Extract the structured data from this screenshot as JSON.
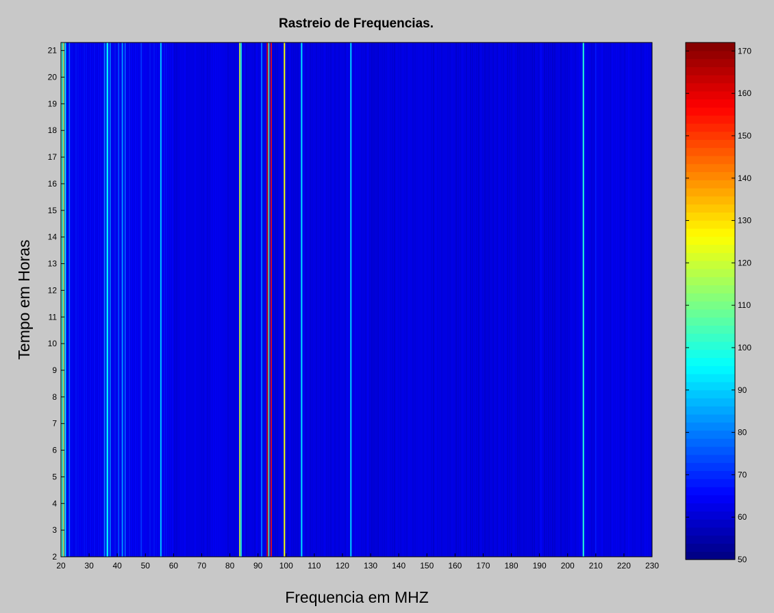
{
  "figure": {
    "background": "#c8c8c8"
  },
  "chart_data": {
    "type": "heatmap",
    "title": "Rastreio de Frequencias.",
    "xlabel": "Frequencia em MHZ",
    "ylabel": "Tempo em Horas",
    "xlim": [
      20,
      230
    ],
    "ylim": [
      2,
      21.3
    ],
    "x_ticks": [
      20,
      30,
      40,
      50,
      60,
      70,
      80,
      90,
      100,
      110,
      120,
      130,
      140,
      150,
      160,
      170,
      180,
      190,
      200,
      210,
      220,
      230
    ],
    "y_ticks": [
      2,
      3,
      4,
      5,
      6,
      7,
      8,
      9,
      10,
      11,
      12,
      13,
      14,
      15,
      16,
      17,
      18,
      19,
      20,
      21
    ],
    "colormap": "jet",
    "colorbar": {
      "range": [
        50,
        172
      ],
      "ticks": [
        50,
        60,
        70,
        80,
        90,
        100,
        110,
        120,
        130,
        140,
        150,
        160,
        170
      ],
      "levels": 64
    },
    "baseline_level": 62,
    "bands": [
      {
        "freq": 20.4,
        "width": 0.5,
        "level": 105
      },
      {
        "freq": 21.0,
        "width": 0.4,
        "level": 120
      },
      {
        "freq": 21.6,
        "width": 0.4,
        "level": 95
      },
      {
        "freq": 23.0,
        "width": 0.4,
        "level": 78
      },
      {
        "freq": 35.5,
        "width": 0.5,
        "level": 80
      },
      {
        "freq": 36.5,
        "width": 0.6,
        "level": 95
      },
      {
        "freq": 37.5,
        "width": 0.4,
        "level": 80
      },
      {
        "freq": 40.5,
        "width": 0.4,
        "level": 75
      },
      {
        "freq": 41.8,
        "width": 0.4,
        "level": 85
      },
      {
        "freq": 42.8,
        "width": 0.4,
        "level": 78
      },
      {
        "freq": 48.5,
        "width": 0.4,
        "level": 72
      },
      {
        "freq": 55.5,
        "width": 0.5,
        "level": 88
      },
      {
        "freq": 83.5,
        "width": 0.4,
        "level": 120
      },
      {
        "freq": 84.0,
        "width": 0.4,
        "level": 100
      },
      {
        "freq": 91.3,
        "width": 0.4,
        "level": 82
      },
      {
        "freq": 93.3,
        "width": 0.4,
        "level": 160
      },
      {
        "freq": 93.8,
        "width": 0.3,
        "level": 110
      },
      {
        "freq": 94.7,
        "width": 0.4,
        "level": 155
      },
      {
        "freq": 99.4,
        "width": 0.5,
        "level": 125
      },
      {
        "freq": 105.5,
        "width": 0.5,
        "level": 92
      },
      {
        "freq": 123.0,
        "width": 0.5,
        "level": 90
      },
      {
        "freq": 190.5,
        "width": 0.4,
        "level": 66
      },
      {
        "freq": 205.6,
        "width": 0.5,
        "level": 100
      },
      {
        "freq": 210.0,
        "width": 0.4,
        "level": 68
      }
    ]
  }
}
